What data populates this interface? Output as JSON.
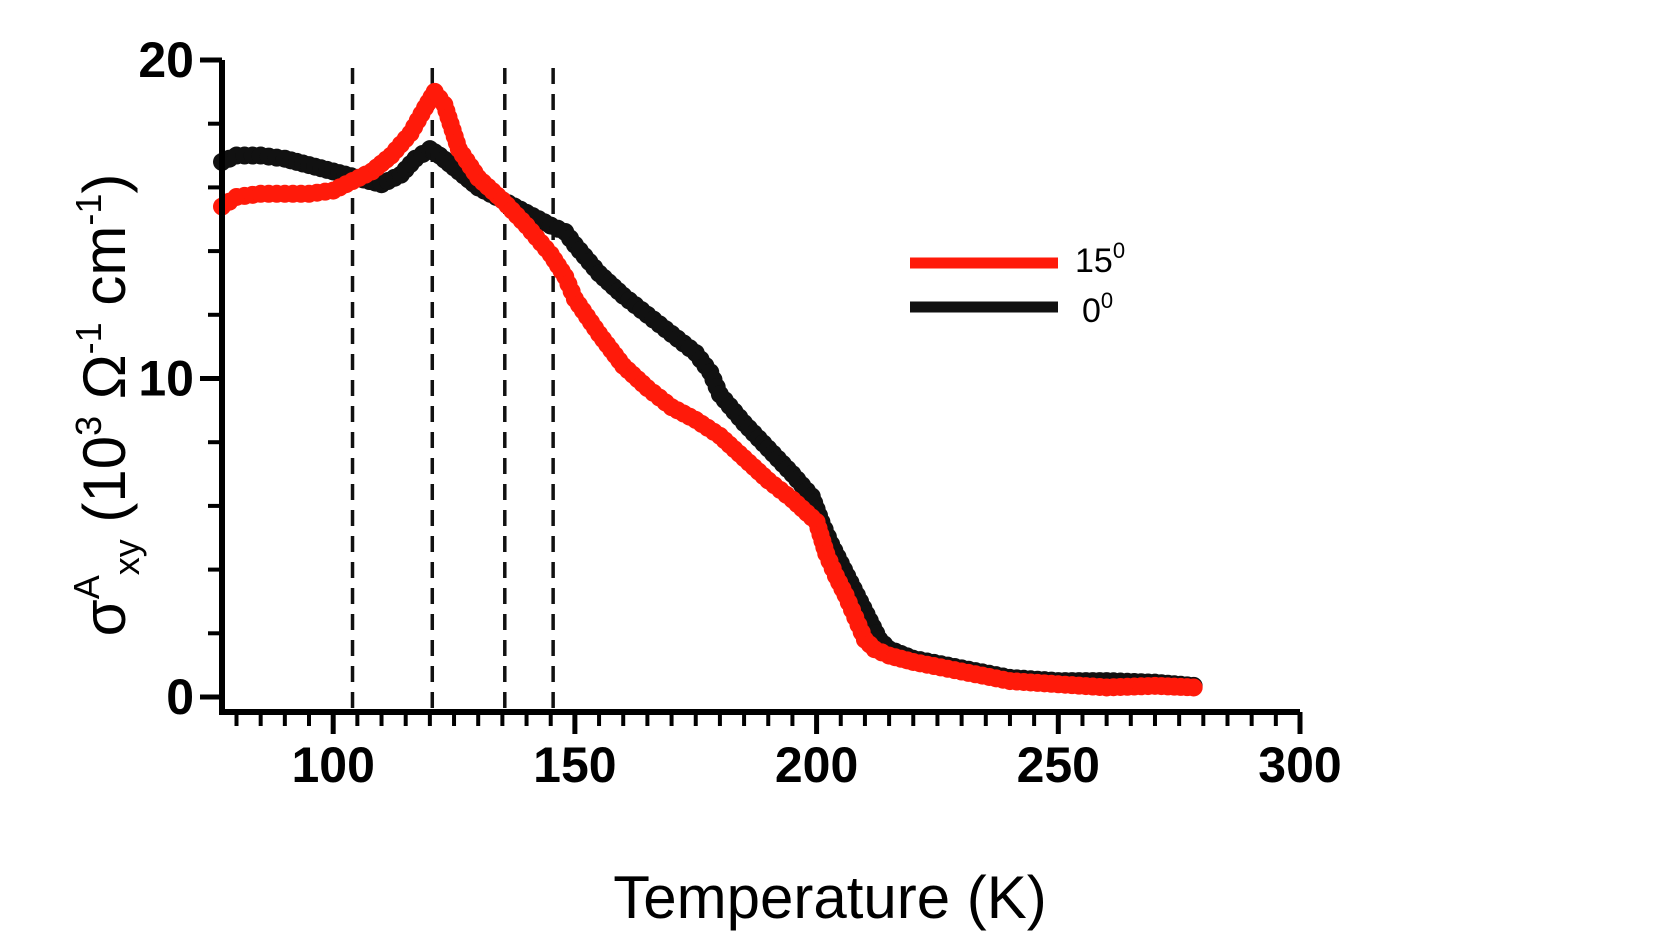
{
  "chart_data": {
    "type": "scatter",
    "xlabel": "Temperature (K)",
    "ylabel": {
      "sigma": "σ",
      "sup": "A",
      "sub": "xy",
      "unit_open": " (10",
      "unit_exp": "3",
      "unit_mid": " Ω",
      "unit_exp2": "-1",
      "unit_end": " cm",
      "unit_exp3": "-1",
      "unit_close": ")"
    },
    "xlim": [
      77,
      300
    ],
    "ylim": [
      0,
      20
    ],
    "xticks": [
      100,
      150,
      200,
      250,
      300
    ],
    "xtick_labels": [
      "100",
      "150",
      "200",
      "250",
      "300"
    ],
    "yticks": [
      0,
      10,
      20
    ],
    "ytick_labels": [
      "0",
      "10",
      "20"
    ],
    "x_minor_step": 5,
    "y_minor_step": 2,
    "vlines": [
      104,
      120.5,
      135.5,
      145.5
    ],
    "legend_position": "right",
    "series": [
      {
        "name": "15",
        "name_sup": "0",
        "color": "#ff1a0a",
        "points": [
          [
            77,
            15.4
          ],
          [
            80,
            15.7
          ],
          [
            85,
            15.8
          ],
          [
            90,
            15.8
          ],
          [
            95,
            15.8
          ],
          [
            100,
            15.9
          ],
          [
            104,
            16.2
          ],
          [
            108,
            16.5
          ],
          [
            112,
            17.0
          ],
          [
            116,
            17.7
          ],
          [
            119,
            18.5
          ],
          [
            121,
            19.0
          ],
          [
            123,
            18.6
          ],
          [
            126,
            17.2
          ],
          [
            130,
            16.3
          ],
          [
            135,
            15.6
          ],
          [
            140,
            14.8
          ],
          [
            145,
            13.9
          ],
          [
            148,
            13.2
          ],
          [
            150,
            12.5
          ],
          [
            155,
            11.4
          ],
          [
            160,
            10.4
          ],
          [
            165,
            9.7
          ],
          [
            170,
            9.1
          ],
          [
            175,
            8.7
          ],
          [
            180,
            8.2
          ],
          [
            185,
            7.5
          ],
          [
            190,
            6.8
          ],
          [
            195,
            6.2
          ],
          [
            200,
            5.5
          ],
          [
            202,
            4.5
          ],
          [
            204,
            3.8
          ],
          [
            206,
            3.2
          ],
          [
            208,
            2.5
          ],
          [
            210,
            1.8
          ],
          [
            212,
            1.5
          ],
          [
            215,
            1.3
          ],
          [
            220,
            1.1
          ],
          [
            230,
            0.8
          ],
          [
            240,
            0.5
          ],
          [
            250,
            0.4
          ],
          [
            260,
            0.3
          ],
          [
            270,
            0.35
          ],
          [
            278,
            0.3
          ]
        ]
      },
      {
        "name": "0",
        "name_sup": "0",
        "color": "#111111",
        "points": [
          [
            77,
            16.8
          ],
          [
            80,
            17.0
          ],
          [
            85,
            17.0
          ],
          [
            90,
            16.9
          ],
          [
            95,
            16.7
          ],
          [
            100,
            16.5
          ],
          [
            105,
            16.3
          ],
          [
            110,
            16.1
          ],
          [
            114,
            16.4
          ],
          [
            117,
            16.9
          ],
          [
            120,
            17.2
          ],
          [
            122,
            17.0
          ],
          [
            126,
            16.5
          ],
          [
            130,
            16.0
          ],
          [
            135,
            15.6
          ],
          [
            140,
            15.2
          ],
          [
            145,
            14.8
          ],
          [
            148,
            14.6
          ],
          [
            150,
            14.2
          ],
          [
            155,
            13.3
          ],
          [
            160,
            12.6
          ],
          [
            165,
            12.0
          ],
          [
            170,
            11.4
          ],
          [
            175,
            10.8
          ],
          [
            178,
            10.2
          ],
          [
            180,
            9.5
          ],
          [
            185,
            8.6
          ],
          [
            190,
            7.8
          ],
          [
            195,
            7.0
          ],
          [
            199,
            6.3
          ],
          [
            201,
            5.5
          ],
          [
            203,
            4.8
          ],
          [
            205,
            4.2
          ],
          [
            207,
            3.6
          ],
          [
            209,
            3.0
          ],
          [
            211,
            2.4
          ],
          [
            213,
            1.8
          ],
          [
            215,
            1.5
          ],
          [
            220,
            1.2
          ],
          [
            230,
            0.9
          ],
          [
            240,
            0.6
          ],
          [
            250,
            0.5
          ],
          [
            260,
            0.5
          ],
          [
            270,
            0.45
          ],
          [
            278,
            0.35
          ]
        ]
      }
    ]
  }
}
